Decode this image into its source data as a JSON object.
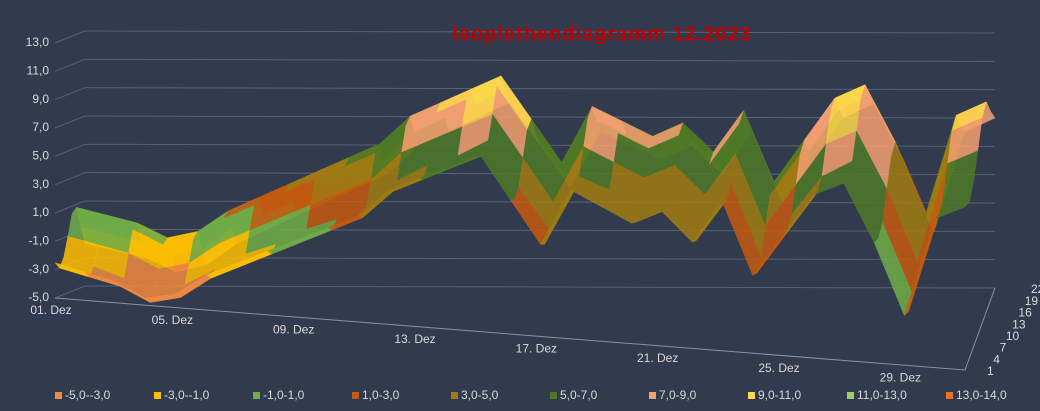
{
  "chart_data": {
    "type": "surface",
    "title": "Isoplethendiagramm 12.2023",
    "categories": [
      "01. Dez",
      null,
      null,
      null,
      "05. Dez",
      null,
      null,
      null,
      "09. Dez",
      null,
      null,
      null,
      "13. Dez",
      null,
      null,
      null,
      "17. Dez",
      null,
      null,
      null,
      "21. Dez",
      null,
      null,
      null,
      "25. Dez",
      null,
      null,
      null,
      "29. Dez",
      null,
      null
    ],
    "depth_categories": [
      1,
      4,
      7,
      10,
      13,
      16,
      19,
      22
    ],
    "ylim": [
      -5,
      13
    ],
    "yticks": [
      {
        "value": -5,
        "label": "-5,0"
      },
      {
        "value": -3,
        "label": "-3,0"
      },
      {
        "value": -1,
        "label": "-1,0"
      },
      {
        "value": 1,
        "label": "1,0"
      },
      {
        "value": 3,
        "label": "3,0"
      },
      {
        "value": 5,
        "label": "5,0"
      },
      {
        "value": 7,
        "label": "7,0"
      },
      {
        "value": 9,
        "label": "9,0"
      },
      {
        "value": 11,
        "label": "11,0"
      },
      {
        "value": 13,
        "label": "13,0"
      }
    ],
    "grid": true,
    "legend": "bottom",
    "bands": [
      {
        "name": "-5,0--3,0",
        "from": -5,
        "to": -3,
        "color": "#f08a40"
      },
      {
        "name": "-3,0--1,0",
        "from": -3,
        "to": -1,
        "color": "#ffc000"
      },
      {
        "name": "-1,0-1,0",
        "from": -1,
        "to": 1,
        "color": "#70ad47"
      },
      {
        "name": "1,0-3,0",
        "from": 1,
        "to": 3,
        "color": "#c55a11"
      },
      {
        "name": "3,0-5,0",
        "from": 3,
        "to": 5,
        "color": "#a07c12"
      },
      {
        "name": "5,0-7,0",
        "from": 5,
        "to": 7,
        "color": "#4e7a27"
      },
      {
        "name": "7,0-9,0",
        "from": 7,
        "to": 9,
        "color": "#f4a070"
      },
      {
        "name": "9,0-11,0",
        "from": 9,
        "to": 11,
        "color": "#ffd84a"
      },
      {
        "name": "11,0-13,0",
        "from": 11,
        "to": 13,
        "color": "#9bd16a"
      },
      {
        "name": "13,0-14,0",
        "from": 13,
        "to": 14,
        "color": "#e8711d"
      }
    ],
    "series": [
      {
        "values": [
          -2.5,
          -3,
          -3.5,
          -4.5,
          -4,
          -2.5,
          -1.5,
          -0.5,
          0.5,
          1.5,
          2.5,
          4.5,
          5.5,
          6.5,
          7.5,
          4.5,
          1.5,
          5.5,
          4.5,
          3.5,
          4.5,
          2.5,
          5.5,
          0.5,
          3.5,
          6.5,
          7.5,
          3.5,
          -1.5,
          5.5,
          6.5
        ]
      },
      {
        "values": [
          -3,
          -3.5,
          -4,
          -5,
          -4.5,
          -3,
          -2,
          -1,
          0,
          1,
          2,
          4,
          5,
          6,
          7,
          4,
          1,
          5,
          4,
          3,
          4,
          2,
          5,
          0,
          3,
          6,
          7,
          3,
          -2,
          5,
          6
        ]
      },
      {
        "values": [
          -2.4,
          -2.9,
          -3.6,
          -4.4,
          -3.8,
          -2.6,
          -1.4,
          -0.6,
          0.6,
          1.4,
          2.6,
          4.4,
          5.6,
          6.4,
          7.6,
          4.4,
          1.6,
          5.4,
          4.6,
          3.4,
          4.6,
          2.4,
          5.6,
          0.4,
          3.6,
          6.4,
          7.6,
          3.4,
          -1.6,
          5.4,
          6.6
        ]
      },
      {
        "values": [
          -1,
          -1.5,
          -2,
          -3,
          -2.5,
          -1,
          0,
          1,
          2,
          3,
          4,
          6,
          7,
          8,
          9,
          6,
          3,
          7,
          6,
          5,
          6,
          4,
          7,
          2,
          5,
          8,
          9,
          5,
          0,
          7,
          8
        ]
      },
      {
        "values": [
          0.5,
          0,
          -0.5,
          -1.5,
          -1,
          0.5,
          1.5,
          2.5,
          3.5,
          4.5,
          5.5,
          7.5,
          8.5,
          9.5,
          10.5,
          7.5,
          4.5,
          8.5,
          7.5,
          6.5,
          7.5,
          5.5,
          8.5,
          3.5,
          6.5,
          9.5,
          10.5,
          6.5,
          1.5,
          8.5,
          9.5
        ]
      },
      {
        "values": [
          0.8,
          0.3,
          -0.2,
          -1.2,
          -0.7,
          0.8,
          1.8,
          2.8,
          3.8,
          4.8,
          5.8,
          7.8,
          8.8,
          9.8,
          10.8,
          7.8,
          4.8,
          8.8,
          7.8,
          6.8,
          7.8,
          5.8,
          8.8,
          3.8,
          6.8,
          9.8,
          10.8,
          6.8,
          1.8,
          8.8,
          9.8
        ]
      },
      {
        "values": [
          -0.7,
          -1.2,
          -1.7,
          -2.7,
          -2.2,
          -0.7,
          0.3,
          1.3,
          2.3,
          3.3,
          4.3,
          6.3,
          7.3,
          8.3,
          9.3,
          6.3,
          3.3,
          7.3,
          6.3,
          5.3,
          6.3,
          4.3,
          7.3,
          2.3,
          5.3,
          8.3,
          9.3,
          5.3,
          0.3,
          7.3,
          8.3
        ]
      },
      {
        "values": [
          -2,
          -2.5,
          -3,
          -4,
          -3.5,
          -2,
          -1,
          0,
          1,
          2,
          3,
          5,
          6,
          7,
          8,
          5,
          2,
          6,
          5,
          4,
          5,
          3,
          6,
          1,
          4,
          7,
          8,
          4,
          -1,
          6,
          7
        ]
      }
    ]
  }
}
